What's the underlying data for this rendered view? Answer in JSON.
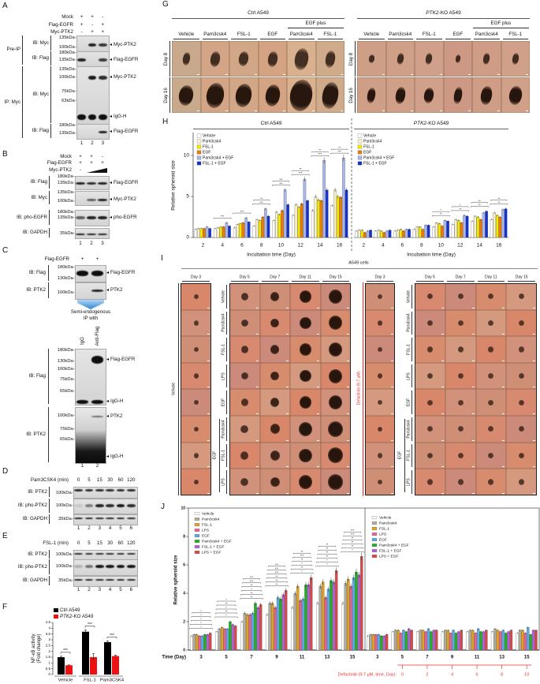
{
  "panels": {
    "A": {
      "label": "A",
      "header": [
        [
          "Mock",
          "+",
          "+",
          "-"
        ],
        [
          "Flag-EGFR",
          "+",
          "-",
          "+"
        ],
        [
          "Myc-PTK2",
          "-",
          "+",
          "+"
        ]
      ],
      "groups": [
        "Pre-IP",
        "IP: Myc"
      ],
      "blots": [
        {
          "ib": "IB: Myc",
          "markers": [
            "135kDa-",
            "100kDa-"
          ],
          "bands": [
            "Myc-PTK2"
          ]
        },
        {
          "ib": "IB: Flag",
          "markers": [
            "180kDa-",
            "135kDa-"
          ],
          "bands": [
            "Flag-EGFR"
          ]
        },
        {
          "ib": "IB: Myc",
          "markers": [
            "135kDa-",
            "100kDa-",
            "75kDa-",
            "63kDa-"
          ],
          "bands": [
            "Myc-PTK2",
            "IgG-H"
          ]
        },
        {
          "ib": "IB: Flag",
          "markers": [
            "180kDa-",
            "135kDa-"
          ],
          "bands": [
            "Flag-EGFR"
          ]
        }
      ],
      "lanes": [
        "1",
        "2",
        "3"
      ]
    },
    "B": {
      "label": "B",
      "header": [
        [
          "Mock",
          "+",
          "+",
          "-"
        ],
        [
          "Flag-EGFR",
          "+",
          "+",
          "+"
        ],
        [
          "Myc-PTK2",
          "-"
        ]
      ],
      "blots": [
        {
          "ib": "IB: Flag",
          "markers": [
            "180kDa-",
            "135kDa-"
          ],
          "bands": [
            "Flag-EGFR"
          ]
        },
        {
          "ib": "IB: Myc",
          "markers": [
            "135kDa-",
            "100kDa-"
          ],
          "bands": [
            "Myc-PTK2"
          ]
        },
        {
          "ib": "IB: pho-EGFR",
          "markers": [
            "180kDa-",
            "135kDa-"
          ],
          "bands": [
            "pho-EGFR"
          ]
        },
        {
          "ib": "IB: GAPDH",
          "markers": [
            "35kDa-"
          ],
          "bands": []
        }
      ],
      "lanes": [
        "1",
        "2",
        "3"
      ]
    },
    "C": {
      "label": "C",
      "header": [
        [
          "Flag-EGFR",
          "+",
          "+"
        ]
      ],
      "blots": [
        {
          "ib": "IB: Flag",
          "markers": [
            "180kDa-",
            "130kDa-"
          ],
          "bands": [
            "Flag-EGFR"
          ]
        },
        {
          "ib": "IB: PTK2",
          "markers": [
            "100kDa-"
          ],
          "bands": [
            "PTK2"
          ]
        },
        {
          "ib": "IB: Flag",
          "markers": [
            "180kDa-",
            "130kDa-",
            "100kDa-",
            "75kDa-",
            "65kDa-"
          ],
          "bands": [
            "Flag-EGFR",
            "IgG-H"
          ]
        },
        {
          "ib": "IB: PTK2",
          "markers": [
            "100kDa-",
            "75kDa-",
            "65kDa-"
          ],
          "bands": [
            "PTK2",
            "IgG-H"
          ]
        }
      ],
      "note": [
        "Semi-endogenous",
        "IP with"
      ],
      "ip_columns": [
        "IgG",
        "Anti-Flag"
      ],
      "lanes": [
        "1",
        "2"
      ]
    },
    "D": {
      "label": "D",
      "treatment": "Pam3CSK4 (min)",
      "times": [
        "0",
        "5",
        "15",
        "30",
        "60",
        "120"
      ],
      "blots": [
        {
          "ib": "IB: PTK2",
          "markers": [
            "100kDa-"
          ],
          "bands": []
        },
        {
          "ib": "IB: pho-PTK2",
          "markers": [
            "100kDa-"
          ],
          "bands": []
        },
        {
          "ib": "IB: GAPDH",
          "markers": [
            "35kDa-"
          ],
          "bands": []
        }
      ],
      "lanes": [
        "1",
        "2",
        "3",
        "4",
        "5",
        "6"
      ]
    },
    "E": {
      "label": "E",
      "treatment": "FSL-1 (min)",
      "times": [
        "0",
        "5",
        "15",
        "30",
        "60",
        "120"
      ],
      "blots": [
        {
          "ib": "IB: PTK2",
          "markers": [
            "100kDa-"
          ],
          "bands": []
        },
        {
          "ib": "IB: pho-PTK2",
          "markers": [
            "100kDa-"
          ],
          "bands": []
        },
        {
          "ib": "IB: GAPDH",
          "markers": [
            "35kDa-"
          ],
          "bands": []
        }
      ],
      "lanes": [
        "1",
        "2",
        "3",
        "4",
        "5",
        "6"
      ]
    },
    "F": {
      "label": "F"
    },
    "G": {
      "label": "G",
      "groups": [
        {
          "gene": "",
          "suffix": "Ctrl A549"
        },
        {
          "gene": "PTK2",
          "suffix": "-KO A549"
        }
      ],
      "egf_plus": "EGF plus",
      "columns": [
        "Vehicle",
        "Pam3csk4",
        "FSL-1",
        "EGF",
        "Pam3csk4",
        "FSL-1"
      ],
      "rows": [
        "Day 8",
        "Day 16"
      ]
    },
    "H": {
      "label": "H"
    },
    "I": {
      "label": "I",
      "title": "A549 cells",
      "day_single": "Day 3",
      "days": [
        "Day 5",
        "Day 7",
        "Day 11",
        "Day 15"
      ],
      "vehicle": "Vehicle",
      "rows": [
        "Vehicle",
        "Pam3csk4",
        "FSL-1",
        "LPS",
        "EGF",
        "Pam3csk4",
        "FSL-1",
        "LPS"
      ],
      "egf": "EGF",
      "defactinib": "Defactinib (9.7 μM)"
    },
    "J": {
      "label": "J"
    }
  },
  "colors": {
    "ctrl": "#000000",
    "ko": "#ee1111",
    "defactinib": "#ee3333",
    "arrow": "#3a8fd8"
  },
  "chart_data": [
    {
      "id": "F",
      "type": "bar",
      "title": "",
      "ylabel": [
        "NF-κB activity",
        "(Fold change)"
      ],
      "xlabel": "",
      "ylim": [
        0,
        4.5
      ],
      "yticks": [
        "0",
        "0.5",
        "1",
        "1.5",
        "2",
        "2.5",
        "3",
        "3.5",
        "4",
        "4.5"
      ],
      "categories": [
        "Vehicle",
        "FSL-1",
        "Pam3CSK4"
      ],
      "series": [
        {
          "name": {
            "gene": "",
            "suffix": "Ctrl A549"
          },
          "color": "#000000",
          "values": [
            1.5,
            3.7,
            2.8
          ],
          "errors": [
            0.08,
            0.15,
            0.1
          ]
        },
        {
          "name": {
            "gene": "PTK2",
            "suffix": "-KO A549"
          },
          "color": "#ee1111",
          "values": [
            0.8,
            1.5,
            1.6
          ],
          "errors": [
            0.03,
            0.3,
            0.08
          ]
        }
      ],
      "significance": [
        "***",
        "***",
        "***"
      ],
      "legend": "top-left"
    },
    {
      "id": "H",
      "type": "bar",
      "ylabel": "Relative spheroid size",
      "xlabel": "Incubation time (Day)",
      "ylim": [
        0,
        13
      ],
      "yticks": [
        "0",
        "5",
        "10"
      ],
      "categories": [
        "2",
        "4",
        "6",
        "8",
        "10",
        "12",
        "14",
        "16"
      ],
      "series_names": [
        "Vehicle",
        "Pam3csk4",
        "FSL-1",
        "EGF",
        "Pam3csk4 + EGF",
        "FSL-1 + EGF"
      ],
      "colors": [
        "#ffffff",
        "#f6f1c9",
        "#f3e800",
        "#f07a00",
        "#a9b6ea",
        "#1232d2"
      ],
      "panels": [
        {
          "title": {
            "gene": "",
            "suffix": "Ctrl A549"
          },
          "values_by_category": [
            [
              1.0,
              1.1,
              1.1,
              1.1,
              1.3,
              1.1
            ],
            [
              1.1,
              1.2,
              1.3,
              1.3,
              1.8,
              1.4
            ],
            [
              1.2,
              1.6,
              1.7,
              1.8,
              2.4,
              1.9
            ],
            [
              1.4,
              2.2,
              2.1,
              2.5,
              3.5,
              2.6
            ],
            [
              2.1,
              3.1,
              2.8,
              3.3,
              5.8,
              4.0
            ],
            [
              2.7,
              4.0,
              3.7,
              4.1,
              7.1,
              4.5
            ],
            [
              3.3,
              5.0,
              4.6,
              4.5,
              9.4,
              5.8
            ],
            [
              3.9,
              5.8,
              5.0,
              4.9,
              9.7,
              5.8
            ]
          ],
          "significance": [
            [],
            [
              "***"
            ],
            [
              "***"
            ],
            [
              "***",
              "**"
            ],
            [
              "***",
              "***"
            ],
            [
              "***",
              "**"
            ],
            [
              "***",
              "**"
            ],
            [
              "***",
              "**"
            ]
          ]
        },
        {
          "title": {
            "gene": "PTK2",
            "suffix": "-KO A549"
          },
          "values_by_category": [
            [
              0.8,
              0.9,
              0.9,
              0.6,
              0.8,
              0.9
            ],
            [
              0.8,
              0.9,
              0.8,
              0.6,
              0.8,
              0.9
            ],
            [
              0.8,
              0.9,
              1.0,
              0.8,
              1.0,
              1.0
            ],
            [
              1.0,
              1.3,
              1.3,
              1.0,
              1.5,
              1.5
            ],
            [
              1.3,
              1.8,
              1.7,
              1.4,
              2.1,
              2.0
            ],
            [
              1.6,
              2.2,
              2.1,
              1.8,
              2.7,
              2.6
            ],
            [
              2.0,
              2.6,
              2.5,
              2.2,
              3.0,
              3.2
            ],
            [
              2.2,
              3.0,
              2.7,
              2.5,
              3.4,
              3.5
            ]
          ],
          "significance": [
            [],
            [],
            [],
            [],
            [
              "**",
              "*"
            ],
            [
              "**",
              "*"
            ],
            [
              "**",
              "**"
            ],
            [
              "**",
              "**"
            ]
          ]
        }
      ],
      "legend": "top-left"
    },
    {
      "id": "J",
      "type": "bar",
      "ylabel": "Relative spheroid size",
      "xlabel": "Time (Day)",
      "ylim": [
        0,
        10
      ],
      "yticks": [
        "0",
        "2",
        "4",
        "6",
        "8",
        "10"
      ],
      "categories": [
        "3",
        "5",
        "7",
        "9",
        "11",
        "13",
        "15"
      ],
      "series_names": [
        "Vehicle",
        "Pam3csk4",
        "FSL-1",
        "LPS",
        "EGF",
        "Pam3csk4 + EGF",
        "FSL-1 + EGF",
        "LPS + EGF"
      ],
      "colors": [
        "#ffffff",
        "#cfc7a8",
        "#e2a21c",
        "#ea5f98",
        "#5aa9ea",
        "#1fb21f",
        "#b25fd9",
        "#d94848"
      ],
      "panels": [
        {
          "values_by_category": [
            [
              1.0,
              1.1,
              1.1,
              1.0,
              1.0,
              1.1,
              1.1,
              1.2
            ],
            [
              1.3,
              1.5,
              1.6,
              1.5,
              1.5,
              2.0,
              1.8,
              1.7
            ],
            [
              2.0,
              2.6,
              2.5,
              2.5,
              2.6,
              3.3,
              3.0,
              3.2
            ],
            [
              2.5,
              3.3,
              3.3,
              3.0,
              3.7,
              3.6,
              3.9,
              4.2
            ],
            [
              3.0,
              4.0,
              4.5,
              3.5,
              3.6,
              4.6,
              4.6,
              5.1
            ],
            [
              3.3,
              4.5,
              4.8,
              3.7,
              4.3,
              4.9,
              4.8,
              5.6
            ],
            [
              3.3,
              4.7,
              5.0,
              4.5,
              5.1,
              5.5,
              5.3,
              6.6
            ]
          ],
          "significance": [
            [
              "*",
              "*",
              "*",
              "*",
              "*"
            ],
            [
              "*",
              "**",
              "*",
              "**",
              "*"
            ],
            [
              "**",
              "**",
              "*",
              "**",
              "***",
              "***"
            ],
            [
              "**",
              "**",
              "**",
              "***",
              "***",
              "***"
            ],
            [
              "*",
              "**",
              "*",
              "**",
              "***",
              "**"
            ],
            [
              "*",
              "*",
              "**",
              "**",
              "**",
              "**"
            ],
            [
              "*",
              "**",
              "**",
              "**",
              "***",
              "***"
            ]
          ]
        },
        {
          "values_by_category": [
            [
              1.0,
              1.1,
              1.1,
              1.1,
              1.1,
              1.0,
              1.0,
              1.1
            ],
            [
              1.3,
              1.4,
              1.4,
              1.2,
              1.4,
              1.3,
              1.5,
              1.4
            ],
            [
              1.3,
              1.4,
              1.4,
              1.3,
              1.5,
              1.3,
              1.4,
              1.4
            ],
            [
              1.3,
              1.4,
              1.4,
              1.2,
              1.4,
              1.2,
              1.3,
              1.4
            ],
            [
              1.3,
              1.4,
              1.4,
              1.2,
              1.5,
              1.3,
              1.3,
              1.4
            ],
            [
              1.3,
              1.5,
              1.4,
              1.3,
              1.4,
              1.2,
              1.3,
              1.4
            ],
            [
              1.2,
              1.4,
              1.4,
              1.2,
              1.6,
              1.1,
              1.4,
              1.4
            ]
          ],
          "significance": [
            [],
            [],
            [],
            [],
            [],
            [],
            []
          ]
        }
      ],
      "defactinib_label": "Defactinib (9.7 μM, time, Day):",
      "defactinib_days": [
        "0",
        "2",
        "4",
        "6",
        "8",
        "10"
      ],
      "legend": "top-left"
    }
  ]
}
